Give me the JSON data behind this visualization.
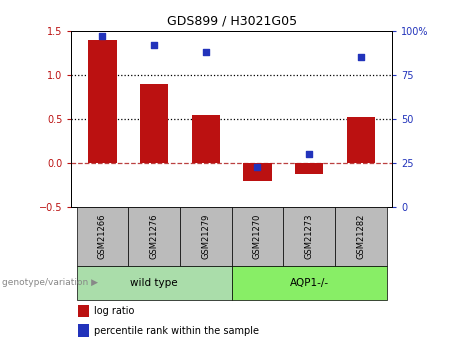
{
  "title": "GDS899 / H3021G05",
  "categories": [
    "GSM21266",
    "GSM21276",
    "GSM21279",
    "GSM21270",
    "GSM21273",
    "GSM21282"
  ],
  "log_ratios": [
    1.4,
    0.9,
    0.55,
    -0.2,
    -0.12,
    0.52
  ],
  "percentile_ranks": [
    97,
    92,
    88,
    23,
    30,
    85
  ],
  "bar_color": "#bb1111",
  "dot_color": "#2233bb",
  "left_ylim": [
    -0.5,
    1.5
  ],
  "right_ylim": [
    0,
    100
  ],
  "left_yticks": [
    -0.5,
    0.0,
    0.5,
    1.0,
    1.5
  ],
  "right_yticks": [
    0,
    25,
    50,
    75,
    100
  ],
  "right_yticklabels": [
    "0",
    "25",
    "50",
    "75",
    "100%"
  ],
  "hlines": [
    0.5,
    1.0
  ],
  "groups": [
    {
      "label": "wild type",
      "indices": [
        0,
        1,
        2
      ],
      "color": "#aaddaa"
    },
    {
      "label": "AQP1-/-",
      "indices": [
        3,
        4,
        5
      ],
      "color": "#88ee66"
    }
  ],
  "group_label": "genotype/variation",
  "legend_bar_label": "log ratio",
  "legend_dot_label": "percentile rank within the sample",
  "background_color": "#ffffff",
  "tick_label_bg": "#bbbbbb",
  "bar_width": 0.55,
  "zero_line_color": "#aa1111",
  "title_fontsize": 9
}
